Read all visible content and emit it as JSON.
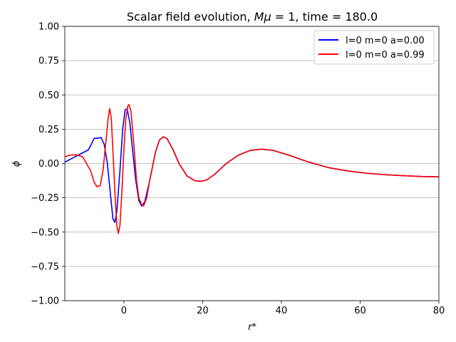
{
  "chart_data": {
    "type": "line",
    "title": "Scalar field evolution, Mμ = 1, time = 180.0",
    "title_parts": {
      "prefix": "Scalar field evolution, ",
      "mu_text": "Mμ",
      "suffix": " = 1, time = 180.0"
    },
    "xlabel": "r*",
    "ylabel": "ϕ",
    "xlim": [
      -15,
      80
    ],
    "ylim": [
      -1.0,
      1.0
    ],
    "xticks": [
      0,
      20,
      40,
      60,
      80
    ],
    "xtick_labels": [
      "0",
      "20",
      "40",
      "60",
      "80"
    ],
    "yticks": [
      -1.0,
      -0.75,
      -0.5,
      -0.25,
      0.0,
      0.25,
      0.5,
      0.75,
      1.0
    ],
    "ytick_labels": [
      "−1.00",
      "−0.75",
      "−0.50",
      "−0.25",
      "0.00",
      "0.25",
      "0.50",
      "0.75",
      "1.00"
    ],
    "grid": "horizontal",
    "legend_position": "top-right",
    "series": [
      {
        "name": "l=0 m=0 a=0.00",
        "color": "#0000ff",
        "points": [
          [
            -15,
            0.01
          ],
          [
            -13,
            0.04
          ],
          [
            -11,
            0.07
          ],
          [
            -9,
            0.1
          ],
          [
            -7.5,
            0.185
          ],
          [
            -6.5,
            0.185
          ],
          [
            -5.8,
            0.19
          ],
          [
            -5,
            0.14
          ],
          [
            -4.2,
            0.0
          ],
          [
            -3.5,
            -0.2
          ],
          [
            -2.8,
            -0.4
          ],
          [
            -2.3,
            -0.43
          ],
          [
            -1.8,
            -0.35
          ],
          [
            -1.0,
            -0.05
          ],
          [
            -0.3,
            0.25
          ],
          [
            0.3,
            0.39
          ],
          [
            0.8,
            0.4
          ],
          [
            1.5,
            0.3
          ],
          [
            2.2,
            0.1
          ],
          [
            3.0,
            -0.12
          ],
          [
            3.8,
            -0.27
          ],
          [
            4.5,
            -0.31
          ],
          [
            5.3,
            -0.28
          ],
          [
            6.5,
            -0.13
          ],
          [
            8,
            0.08
          ],
          [
            9,
            0.17
          ],
          [
            10,
            0.195
          ],
          [
            11,
            0.18
          ],
          [
            12.5,
            0.1
          ],
          [
            14,
            0.0
          ],
          [
            16,
            -0.09
          ],
          [
            18,
            -0.125
          ],
          [
            19.5,
            -0.13
          ],
          [
            21,
            -0.12
          ],
          [
            23,
            -0.08
          ],
          [
            26,
            0.0
          ],
          [
            29,
            0.06
          ],
          [
            32,
            0.095
          ],
          [
            35,
            0.105
          ],
          [
            38,
            0.095
          ],
          [
            42,
            0.06
          ],
          [
            47,
            0.01
          ],
          [
            52,
            -0.03
          ],
          [
            57,
            -0.055
          ],
          [
            62,
            -0.072
          ],
          [
            67,
            -0.083
          ],
          [
            72,
            -0.09
          ],
          [
            76,
            -0.095
          ],
          [
            80,
            -0.097
          ]
        ]
      },
      {
        "name": "l=0 m=0 a=0.99",
        "color": "#ff0000",
        "points": [
          [
            -15,
            0.05
          ],
          [
            -13.5,
            0.062
          ],
          [
            -12,
            0.063
          ],
          [
            -10.5,
            0.05
          ],
          [
            -9.5,
            0.0
          ],
          [
            -8.5,
            -0.05
          ],
          [
            -7.5,
            -0.14
          ],
          [
            -6.8,
            -0.17
          ],
          [
            -6.0,
            -0.16
          ],
          [
            -5.3,
            -0.05
          ],
          [
            -4.6,
            0.15
          ],
          [
            -4.0,
            0.33
          ],
          [
            -3.6,
            0.4
          ],
          [
            -3.2,
            0.33
          ],
          [
            -2.8,
            0.1
          ],
          [
            -2.3,
            -0.2
          ],
          [
            -1.8,
            -0.45
          ],
          [
            -1.4,
            -0.51
          ],
          [
            -1.0,
            -0.45
          ],
          [
            -0.5,
            -0.2
          ],
          [
            0.0,
            0.1
          ],
          [
            0.5,
            0.33
          ],
          [
            1.0,
            0.42
          ],
          [
            1.3,
            0.43
          ],
          [
            1.8,
            0.38
          ],
          [
            2.5,
            0.15
          ],
          [
            3.2,
            -0.12
          ],
          [
            3.8,
            -0.25
          ],
          [
            4.5,
            -0.3
          ],
          [
            5.0,
            -0.31
          ],
          [
            5.8,
            -0.25
          ],
          [
            6.5,
            -0.13
          ],
          [
            8,
            0.08
          ],
          [
            9,
            0.17
          ],
          [
            10,
            0.195
          ],
          [
            11,
            0.18
          ],
          [
            12.5,
            0.1
          ],
          [
            14,
            0.0
          ],
          [
            16,
            -0.09
          ],
          [
            18,
            -0.125
          ],
          [
            19.5,
            -0.13
          ],
          [
            21,
            -0.12
          ],
          [
            23,
            -0.08
          ],
          [
            26,
            0.0
          ],
          [
            29,
            0.06
          ],
          [
            32,
            0.095
          ],
          [
            35,
            0.105
          ],
          [
            38,
            0.095
          ],
          [
            42,
            0.06
          ],
          [
            47,
            0.01
          ],
          [
            52,
            -0.03
          ],
          [
            57,
            -0.055
          ],
          [
            62,
            -0.072
          ],
          [
            67,
            -0.083
          ],
          [
            72,
            -0.09
          ],
          [
            76,
            -0.095
          ],
          [
            80,
            -0.097
          ]
        ]
      }
    ]
  }
}
